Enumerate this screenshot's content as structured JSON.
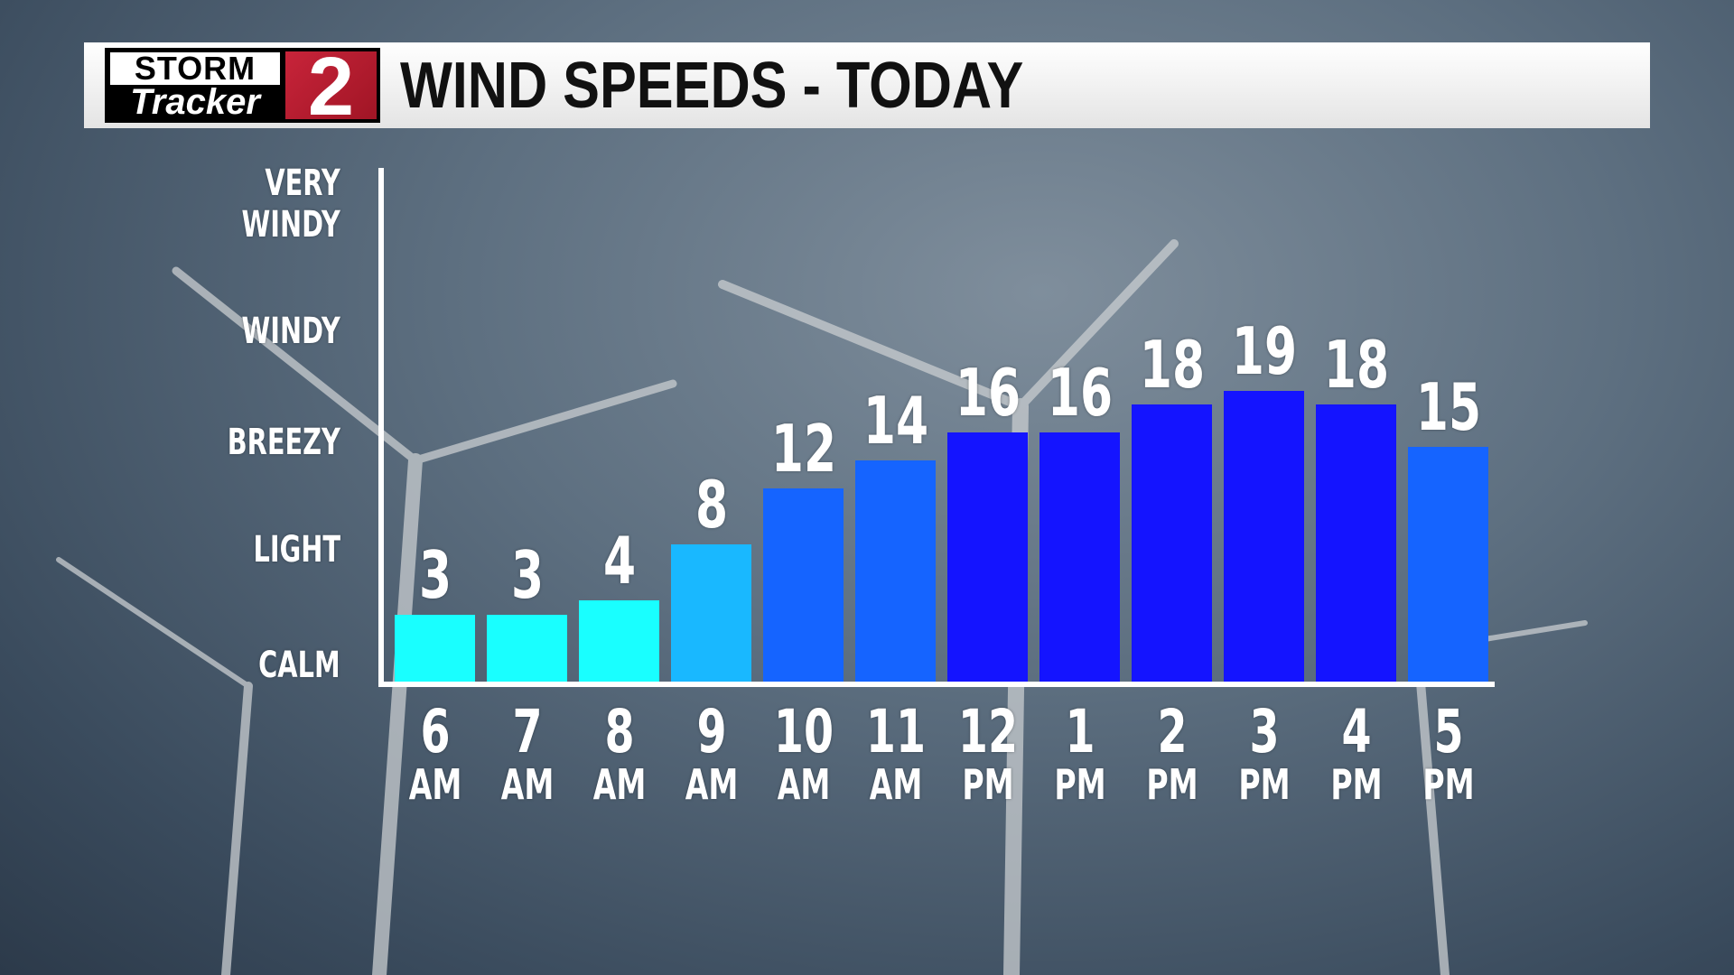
{
  "header": {
    "logo_text_top": "STORM",
    "logo_text_bottom": "Tracker",
    "logo_number": "2",
    "title": "WIND SPEEDS - TODAY"
  },
  "chart_data": {
    "type": "bar",
    "title": "WIND SPEEDS - TODAY",
    "categories": [
      [
        "6",
        "AM"
      ],
      [
        "7",
        "AM"
      ],
      [
        "8",
        "AM"
      ],
      [
        "9",
        "AM"
      ],
      [
        "10",
        "AM"
      ],
      [
        "11",
        "AM"
      ],
      [
        "12",
        "PM"
      ],
      [
        "1",
        "PM"
      ],
      [
        "2",
        "PM"
      ],
      [
        "3",
        "PM"
      ],
      [
        "4",
        "PM"
      ],
      [
        "5",
        "PM"
      ]
    ],
    "values": [
      3,
      3,
      4,
      8,
      12,
      14,
      16,
      16,
      18,
      19,
      18,
      15
    ],
    "y_category_labels": [
      "CALM",
      "LIGHT",
      "BREEZY",
      "WINDY",
      "VERY WINDY"
    ],
    "grid": false,
    "colors": {
      "calm": "#19FFFF",
      "light": "#19B8FF",
      "breezy": "#1564FF",
      "windy": "#1414FF"
    },
    "bar_colors": [
      "#19FFFF",
      "#19FFFF",
      "#19FFFF",
      "#19B8FF",
      "#1564FF",
      "#1564FF",
      "#1414FF",
      "#1414FF",
      "#1414FF",
      "#1414FF",
      "#1414FF",
      "#1564FF"
    ]
  }
}
